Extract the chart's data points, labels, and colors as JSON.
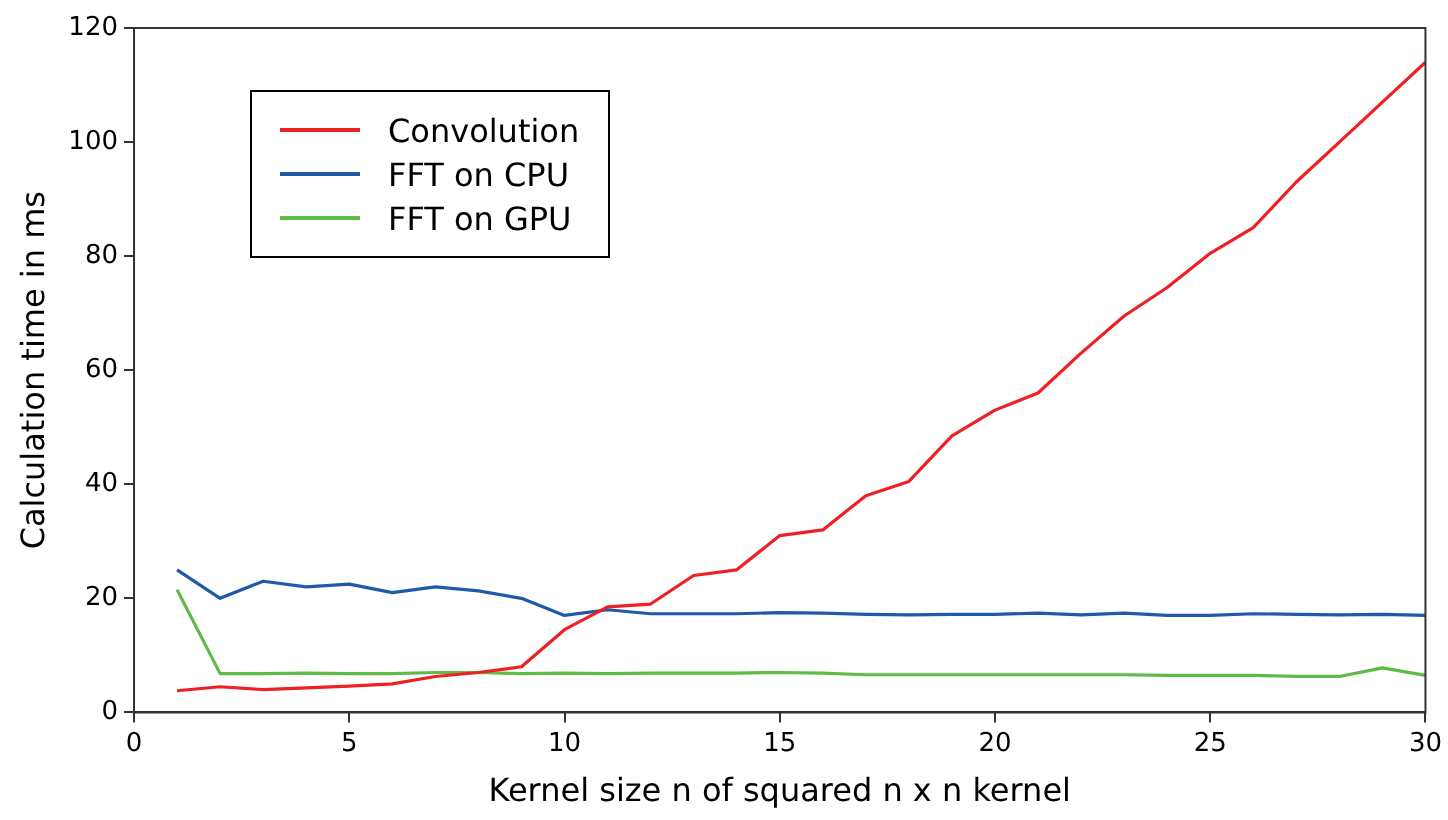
{
  "chart_data": {
    "type": "line",
    "xlabel": "Kernel size n of squared n x n kernel",
    "ylabel": "Calculation time in ms",
    "x": [
      1,
      2,
      3,
      4,
      5,
      6,
      7,
      8,
      9,
      10,
      11,
      12,
      13,
      14,
      15,
      16,
      17,
      18,
      19,
      20,
      21,
      22,
      23,
      24,
      25,
      26,
      27,
      28,
      29,
      30
    ],
    "series": [
      {
        "name": "Convolution",
        "color": "#ed2024",
        "values": [
          3.8,
          4.5,
          4,
          4.3,
          4.6,
          5,
          6.3,
          7,
          8,
          14.5,
          18.5,
          19,
          24,
          25,
          31,
          32,
          38,
          40.5,
          48.5,
          53,
          56,
          63,
          69.5,
          74.5,
          80.5,
          85,
          93,
          100,
          107,
          114
        ]
      },
      {
        "name": "FFT on CPU",
        "color": "#1f5aa8",
        "values": [
          25,
          20,
          23,
          22,
          22.5,
          21,
          22,
          21.3,
          20,
          17,
          18,
          17.3,
          17.3,
          17.3,
          17.5,
          17.4,
          17.2,
          17.1,
          17.2,
          17.2,
          17.4,
          17.1,
          17.4,
          17,
          17,
          17.3,
          17.2,
          17.1,
          17.2,
          17
        ]
      },
      {
        "name": "FFT on GPU",
        "color": "#5dbb46",
        "values": [
          21.5,
          6.8,
          6.8,
          6.9,
          6.8,
          6.8,
          7,
          7,
          6.8,
          6.9,
          6.8,
          6.9,
          6.9,
          6.9,
          7,
          6.9,
          6.6,
          6.6,
          6.6,
          6.6,
          6.6,
          6.6,
          6.6,
          6.5,
          6.5,
          6.5,
          6.3,
          6.3,
          7.8,
          6.5
        ]
      }
    ],
    "xlim": [
      0,
      30
    ],
    "xticks": [
      0,
      5,
      10,
      15,
      20,
      25,
      30
    ],
    "ylim": [
      0,
      120
    ],
    "yticks": [
      0,
      20,
      40,
      60,
      80,
      100,
      120
    ],
    "grid": false,
    "legend": "top left",
    "marker": "none",
    "line_style": "solid"
  }
}
